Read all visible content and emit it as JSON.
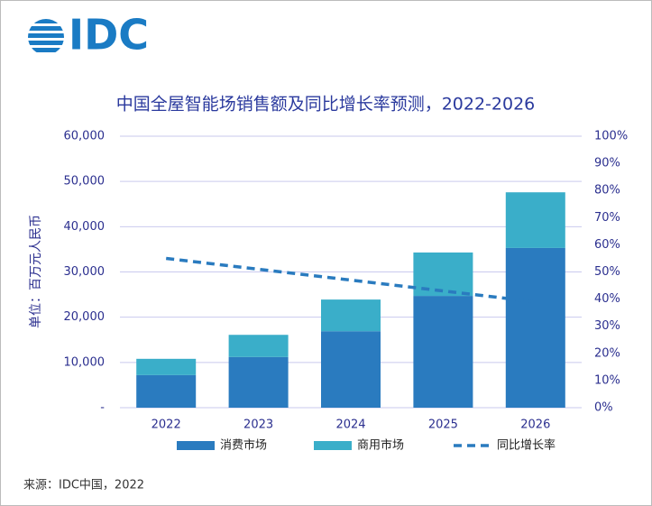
{
  "logo": "IDC",
  "source": "来源：IDC中国，2022",
  "chart_data": {
    "type": "bar",
    "stacked": true,
    "title": "中国全屋智能场销售额及同比增长率预测，2022-2026",
    "y_label": "单位：百万元人民币",
    "categories": [
      "2022",
      "2023",
      "2024",
      "2025",
      "2026"
    ],
    "series": [
      {
        "name": "消费市场",
        "color": "#2a7bbf",
        "values": [
          7200,
          11200,
          16900,
          24700,
          35300
        ]
      },
      {
        "name": "商用市场",
        "color": "#3aaec9",
        "values": [
          3600,
          4900,
          7000,
          9600,
          12300
        ]
      },
      {
        "name": "同比增长率",
        "color": "#2a7bbf",
        "type": "line",
        "dashed": true,
        "axis": "y2",
        "values": [
          55,
          51,
          47,
          43,
          39
        ]
      }
    ],
    "ylim": [
      0,
      60000
    ],
    "yticks": [
      {
        "value": 0,
        "label": "-"
      },
      {
        "value": 10000,
        "label": "10,000"
      },
      {
        "value": 20000,
        "label": "20,000"
      },
      {
        "value": 30000,
        "label": "30,000"
      },
      {
        "value": 40000,
        "label": "40,000"
      },
      {
        "value": 50000,
        "label": "50,000"
      },
      {
        "value": 60000,
        "label": "60,000"
      }
    ],
    "y2lim": [
      0,
      100
    ],
    "y2ticks": [
      {
        "value": 0,
        "label": "0%"
      },
      {
        "value": 10,
        "label": "10%"
      },
      {
        "value": 20,
        "label": "20%"
      },
      {
        "value": 30,
        "label": "30%"
      },
      {
        "value": 40,
        "label": "40%"
      },
      {
        "value": 50,
        "label": "50%"
      },
      {
        "value": 60,
        "label": "60%"
      },
      {
        "value": 70,
        "label": "70%"
      },
      {
        "value": 80,
        "label": "80%"
      },
      {
        "value": 90,
        "label": "90%"
      },
      {
        "value": 100,
        "label": "100%"
      }
    ],
    "grid": true,
    "legend": "bottom"
  }
}
